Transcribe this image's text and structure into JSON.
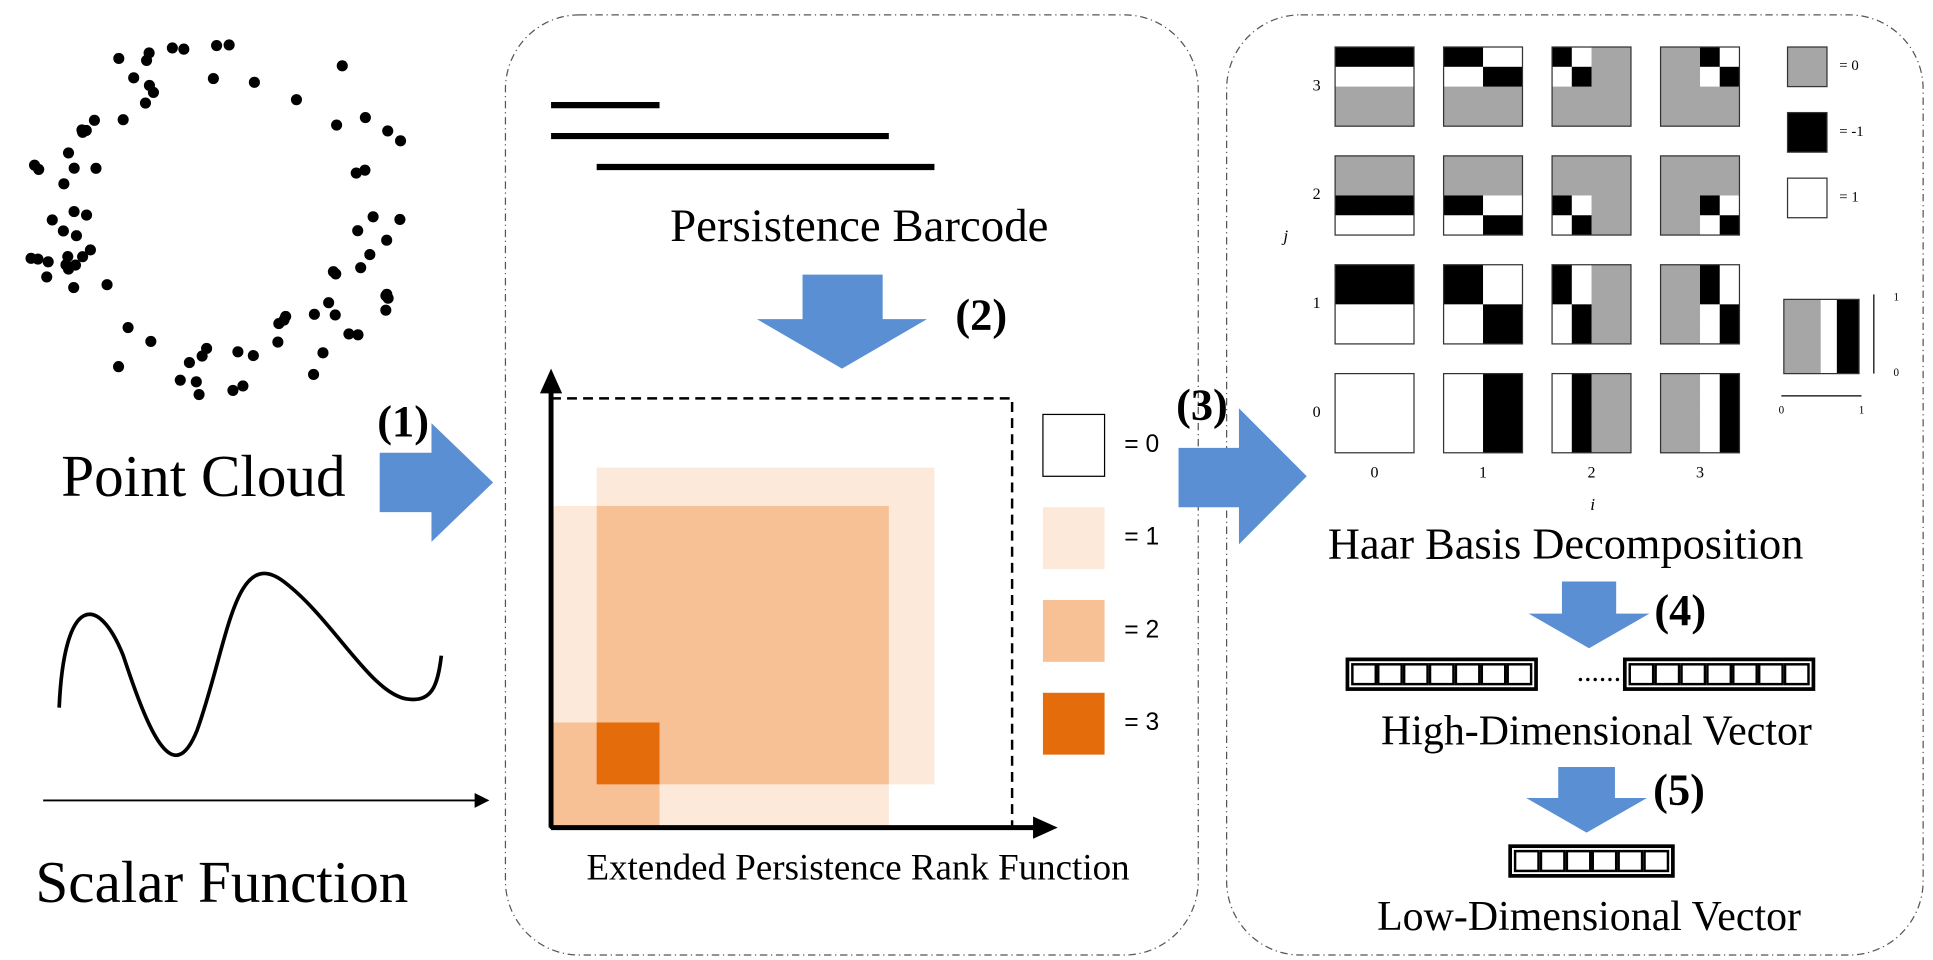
{
  "left": {
    "point_cloud": "Point Cloud",
    "scalar_function": "Scalar Function"
  },
  "steps": [
    "(1)",
    "(2)",
    "(3)",
    "(4)",
    "(5)"
  ],
  "middle": {
    "barcode": "Persistence Barcode",
    "rank_function": "Extended Persistence Rank Function",
    "legend": [
      "= 0",
      "= 1",
      "= 2",
      "= 3"
    ]
  },
  "right": {
    "title": "Haar Basis Decomposition",
    "y_label": "j",
    "x_label": "i",
    "row_labels": [
      "3",
      "2",
      "1",
      "0"
    ],
    "col_labels": [
      "0",
      "1",
      "2",
      "3"
    ],
    "legend": [
      "= 0",
      "= -1",
      "= 1"
    ],
    "inset_y_ticks": [
      "1",
      "0"
    ],
    "inset_x_ticks": [
      "0",
      "1"
    ],
    "high_dim": "High-Dimensional Vector",
    "dots": "......",
    "low_dim": "Low-Dimensional Vector"
  }
}
